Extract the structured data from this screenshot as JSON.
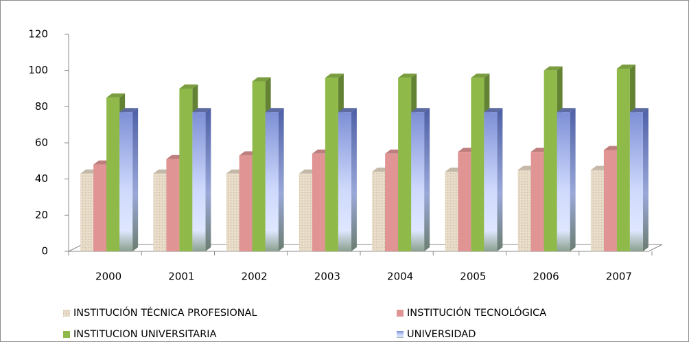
{
  "chart_data": {
    "type": "bar3d",
    "categories": [
      "2000",
      "2001",
      "2002",
      "2003",
      "2004",
      "2005",
      "2006",
      "2007"
    ],
    "series": [
      {
        "name": "INSTITUCIÓN TÉCNICA PROFESIONAL",
        "color": "#e6dac6",
        "values": [
          43,
          43,
          43,
          43,
          44,
          44,
          45,
          45
        ]
      },
      {
        "name": "INSTITUCIÓN TECNOLÓGICA",
        "color": "#e09494",
        "values": [
          48,
          51,
          53,
          54,
          54,
          55,
          55,
          56
        ]
      },
      {
        "name": "INSTITUCION UNIVERSITARIA",
        "color": "#8fba4a",
        "values": [
          85,
          90,
          94,
          96,
          96,
          96,
          100,
          101
        ]
      },
      {
        "name": "UNIVERSIDAD",
        "color": "#7d8fd6",
        "values": [
          77,
          77,
          77,
          77,
          77,
          77,
          77,
          77
        ]
      }
    ],
    "ylim": [
      0,
      120
    ],
    "yticks": [
      0,
      20,
      40,
      60,
      80,
      100,
      120
    ],
    "legend": "bottom"
  }
}
